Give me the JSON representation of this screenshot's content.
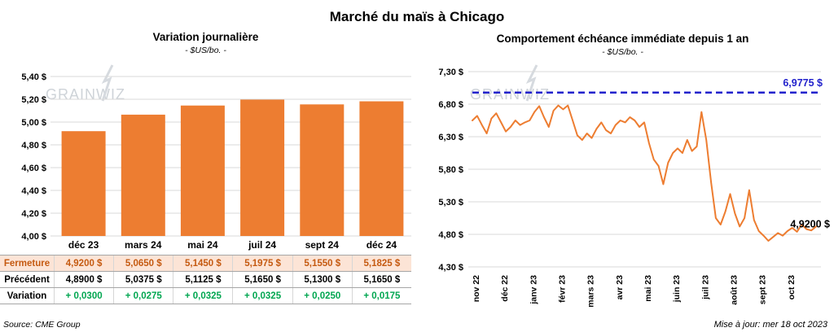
{
  "page": {
    "title": "Marché du maïs à Chicago",
    "source": "Source: CME Group",
    "updated": "Mise à jour: mer 18 oct 2023",
    "watermark": "grainwiz"
  },
  "colors": {
    "bar": "#ED7D31",
    "line": "#ED7D31",
    "reference": "#2222CC",
    "grid": "#D9D9D9",
    "fermeture-bg": "#FCE4D6",
    "fermeture-text": "#C55A11",
    "variation-text": "#00A650"
  },
  "chart_data": [
    {
      "type": "bar",
      "title": "Variation journalière",
      "subtitle": "- $US/bo. -",
      "categories": [
        "déc 23",
        "mars 24",
        "mai 24",
        "juil 24",
        "sept 24",
        "déc 24"
      ],
      "values": [
        4.92,
        5.065,
        5.145,
        5.1975,
        5.155,
        5.1825
      ],
      "ylim": [
        4.0,
        5.4
      ],
      "grid": true,
      "y_ticks": [
        5.4,
        5.2,
        5.0,
        4.8,
        4.6,
        4.4,
        4.2,
        4.0
      ],
      "y_tick_labels": [
        "5,40 $",
        "5,20 $",
        "5,00 $",
        "4,80 $",
        "4,60 $",
        "4,40 $",
        "4,20 $",
        "4,00 $"
      ]
    },
    {
      "type": "line",
      "title": "Comportement échéance immédiate depuis 1 an",
      "subtitle": "- $US/bo. -",
      "x_tick_labels": [
        "nov 22",
        "déc 22",
        "janv 23",
        "févr 23",
        "mars 23",
        "avr 23",
        "mai 23",
        "juin 23",
        "juil 23",
        "août 23",
        "sept 23",
        "oct 23"
      ],
      "ylim": [
        4.3,
        7.3
      ],
      "grid": true,
      "y_ticks": [
        7.3,
        6.8,
        6.3,
        5.8,
        5.3,
        4.8,
        4.3
      ],
      "y_tick_labels": [
        "7,30 $",
        "6,80 $",
        "6,30 $",
        "5,80 $",
        "5,30 $",
        "4,80 $",
        "4,30 $"
      ],
      "reference_line": {
        "value": 6.9775,
        "label": "6,9775 $"
      },
      "end_label": "4,9200 $",
      "values": [
        6.55,
        6.62,
        6.48,
        6.35,
        6.58,
        6.66,
        6.52,
        6.38,
        6.45,
        6.55,
        6.48,
        6.52,
        6.55,
        6.68,
        6.77,
        6.6,
        6.45,
        6.7,
        6.78,
        6.72,
        6.78,
        6.55,
        6.32,
        6.25,
        6.35,
        6.28,
        6.42,
        6.52,
        6.4,
        6.35,
        6.48,
        6.55,
        6.52,
        6.6,
        6.55,
        6.45,
        6.52,
        6.2,
        5.95,
        5.85,
        5.57,
        5.9,
        6.05,
        6.12,
        6.05,
        6.25,
        6.08,
        6.15,
        6.68,
        6.25,
        5.6,
        5.05,
        4.95,
        5.15,
        5.42,
        5.12,
        4.92,
        5.05,
        5.48,
        5.02,
        4.85,
        4.78,
        4.7,
        4.76,
        4.82,
        4.78,
        4.85,
        4.9,
        4.84,
        4.95,
        4.88,
        4.86,
        4.92
      ]
    }
  ],
  "table": {
    "rows": [
      {
        "label": "Fermeture",
        "values": [
          "4,9200  $",
          "5,0650  $",
          "5,1450  $",
          "5,1975  $",
          "5,1550  $",
          "5,1825  $"
        ]
      },
      {
        "label": "Précédent",
        "values": [
          "4,8900  $",
          "5,0375  $",
          "5,1125  $",
          "5,1650  $",
          "5,1300  $",
          "5,1650  $"
        ]
      },
      {
        "label": "Variation",
        "values": [
          "+ 0,0300",
          "+ 0,0275",
          "+ 0,0325",
          "+ 0,0325",
          "+ 0,0250",
          "+ 0,0175"
        ]
      }
    ]
  }
}
